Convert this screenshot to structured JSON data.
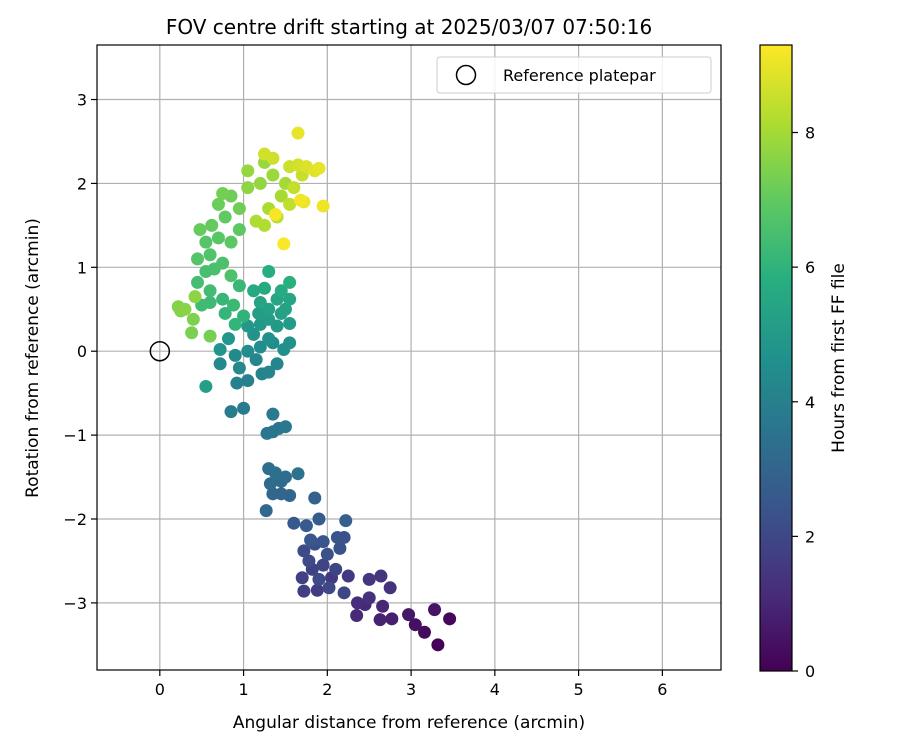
{
  "chart_data": {
    "type": "scatter",
    "title": "FOV centre drift starting at 2025/03/07 07:50:16",
    "xlabel": "Angular distance from reference (arcmin)",
    "ylabel": "Rotation from reference (arcmin)",
    "xlim": [
      -0.75,
      6.7
    ],
    "ylim": [
      -3.8,
      3.65
    ],
    "xticks": [
      "0",
      "1",
      "2",
      "3",
      "4",
      "5",
      "6"
    ],
    "yticks": [
      "−3",
      "−2",
      "−1",
      "0",
      "1",
      "2",
      "3"
    ],
    "grid": true,
    "legend": {
      "placement": "top-right",
      "entries": [
        {
          "label": "Reference platepar",
          "marker": "open-circle"
        }
      ]
    },
    "reference_point": {
      "x": 0,
      "y": 0
    },
    "colorbar": {
      "label": "Hours from first FF file",
      "colormap": "viridis",
      "range": [
        0,
        9.3
      ],
      "ticks": [
        "0",
        "2",
        "4",
        "6",
        "8"
      ]
    },
    "points": [
      [
        3.32,
        -3.5,
        0.05
      ],
      [
        3.46,
        -3.19,
        0.15
      ],
      [
        3.16,
        -3.35,
        0.3
      ],
      [
        3.05,
        -3.26,
        0.4
      ],
      [
        3.28,
        -3.08,
        0.5
      ],
      [
        2.97,
        -3.14,
        0.6
      ],
      [
        2.77,
        -3.19,
        0.8
      ],
      [
        2.63,
        -3.2,
        0.9
      ],
      [
        2.66,
        -3.04,
        1.0
      ],
      [
        2.45,
        -3.02,
        1.05
      ],
      [
        2.35,
        -3.15,
        1.1
      ],
      [
        2.36,
        -3.0,
        1.2
      ],
      [
        2.5,
        -2.94,
        1.3
      ],
      [
        2.75,
        -2.82,
        1.35
      ],
      [
        2.64,
        -2.68,
        1.4
      ],
      [
        2.5,
        -2.72,
        1.45
      ],
      [
        2.25,
        -2.68,
        1.5
      ],
      [
        2.05,
        -2.7,
        1.55
      ],
      [
        1.88,
        -2.85,
        1.6
      ],
      [
        1.72,
        -2.86,
        1.7
      ],
      [
        1.7,
        -2.7,
        1.75
      ],
      [
        1.82,
        -2.6,
        1.8
      ],
      [
        1.95,
        -2.55,
        1.85
      ],
      [
        2.1,
        -2.6,
        1.9
      ],
      [
        2.2,
        -2.88,
        1.95
      ],
      [
        2.02,
        -2.82,
        2.0
      ],
      [
        1.9,
        -2.72,
        2.05
      ],
      [
        1.78,
        -2.5,
        2.1
      ],
      [
        1.72,
        -2.38,
        2.15
      ],
      [
        1.85,
        -2.3,
        2.2
      ],
      [
        2.0,
        -2.42,
        2.25
      ],
      [
        2.15,
        -2.35,
        2.3
      ],
      [
        2.2,
        -2.22,
        2.35
      ],
      [
        2.12,
        -2.22,
        2.4
      ],
      [
        1.95,
        -2.27,
        2.45
      ],
      [
        1.8,
        -2.25,
        2.5
      ],
      [
        1.6,
        -2.05,
        2.6
      ],
      [
        1.75,
        -2.08,
        2.65
      ],
      [
        1.9,
        -2.0,
        2.7
      ],
      [
        2.22,
        -2.02,
        2.8
      ],
      [
        1.85,
        -1.75,
        2.9
      ],
      [
        1.55,
        -1.72,
        3.0
      ],
      [
        1.45,
        -1.7,
        3.05
      ],
      [
        1.35,
        -1.7,
        3.1
      ],
      [
        1.27,
        -1.9,
        3.15
      ],
      [
        1.32,
        -1.58,
        3.2
      ],
      [
        1.45,
        -1.55,
        3.25
      ],
      [
        1.5,
        -1.5,
        3.3
      ],
      [
        1.3,
        -1.4,
        3.35
      ],
      [
        1.38,
        -1.45,
        3.4
      ],
      [
        1.65,
        -1.46,
        3.45
      ],
      [
        1.35,
        -0.96,
        3.55
      ],
      [
        1.28,
        -0.98,
        3.6
      ],
      [
        1.42,
        -0.92,
        3.65
      ],
      [
        1.5,
        -0.9,
        3.7
      ],
      [
        1.35,
        -0.75,
        3.75
      ],
      [
        1.0,
        -0.68,
        3.85
      ],
      [
        0.85,
        -0.72,
        3.9
      ],
      [
        0.92,
        -0.38,
        4.0
      ],
      [
        1.05,
        -0.35,
        4.05
      ],
      [
        1.22,
        -0.27,
        4.1
      ],
      [
        1.3,
        -0.25,
        4.15
      ],
      [
        1.4,
        -0.15,
        4.2
      ],
      [
        1.15,
        -0.1,
        4.25
      ],
      [
        0.95,
        -0.2,
        4.3
      ],
      [
        0.72,
        -0.15,
        4.35
      ],
      [
        0.9,
        -0.05,
        4.4
      ],
      [
        1.05,
        0.0,
        4.45
      ],
      [
        1.2,
        0.05,
        4.5
      ],
      [
        1.35,
        0.1,
        4.55
      ],
      [
        1.48,
        0.02,
        4.6
      ],
      [
        1.55,
        0.1,
        4.65
      ],
      [
        1.3,
        0.15,
        4.7
      ],
      [
        1.12,
        0.2,
        4.75
      ],
      [
        0.72,
        0.02,
        4.8
      ],
      [
        0.82,
        0.15,
        4.85
      ],
      [
        1.05,
        0.3,
        4.9
      ],
      [
        1.2,
        0.32,
        4.95
      ],
      [
        1.4,
        0.3,
        5.0
      ],
      [
        1.55,
        0.33,
        5.05
      ],
      [
        1.3,
        0.38,
        5.1
      ],
      [
        1.18,
        0.45,
        5.15
      ],
      [
        0.55,
        -0.42,
        5.2
      ],
      [
        1.45,
        0.45,
        5.25
      ],
      [
        1.5,
        0.5,
        5.3
      ],
      [
        1.3,
        0.5,
        5.35
      ],
      [
        1.2,
        0.58,
        5.4
      ],
      [
        1.4,
        0.62,
        5.45
      ],
      [
        1.55,
        0.62,
        5.5
      ],
      [
        1.12,
        0.72,
        5.6
      ],
      [
        1.25,
        0.75,
        5.65
      ],
      [
        1.45,
        0.72,
        5.7
      ],
      [
        1.3,
        0.95,
        5.75
      ],
      [
        1.55,
        0.82,
        5.85
      ],
      [
        1.0,
        0.42,
        6.0
      ],
      [
        0.9,
        0.32,
        6.05
      ],
      [
        0.78,
        0.45,
        6.1
      ],
      [
        0.75,
        0.62,
        6.15
      ],
      [
        0.95,
        0.78,
        6.2
      ],
      [
        0.88,
        0.55,
        6.25
      ],
      [
        0.6,
        0.58,
        6.3
      ],
      [
        0.5,
        0.55,
        6.35
      ],
      [
        0.6,
        0.72,
        6.4
      ],
      [
        0.45,
        0.82,
        6.45
      ],
      [
        0.55,
        0.95,
        6.5
      ],
      [
        0.65,
        0.98,
        6.55
      ],
      [
        0.75,
        1.05,
        6.6
      ],
      [
        0.85,
        0.9,
        6.65
      ],
      [
        0.6,
        1.15,
        6.7
      ],
      [
        0.45,
        1.1,
        6.75
      ],
      [
        0.55,
        1.3,
        6.8
      ],
      [
        0.7,
        1.35,
        6.85
      ],
      [
        0.85,
        1.3,
        6.9
      ],
      [
        0.95,
        1.45,
        6.95
      ],
      [
        0.78,
        1.6,
        7.0
      ],
      [
        0.62,
        1.5,
        7.05
      ],
      [
        0.48,
        1.45,
        7.1
      ],
      [
        0.7,
        1.75,
        7.15
      ],
      [
        0.85,
        1.85,
        7.2
      ],
      [
        0.95,
        1.7,
        7.25
      ],
      [
        0.75,
        1.88,
        7.3
      ],
      [
        0.6,
        0.18,
        7.35
      ],
      [
        0.38,
        0.22,
        7.4
      ],
      [
        0.4,
        0.38,
        7.45
      ],
      [
        0.25,
        0.48,
        7.5
      ],
      [
        0.22,
        0.53,
        7.55
      ],
      [
        0.3,
        0.5,
        7.6
      ],
      [
        0.42,
        0.65,
        7.65
      ],
      [
        1.05,
        1.95,
        7.7
      ],
      [
        1.2,
        2.0,
        7.75
      ],
      [
        1.05,
        2.15,
        7.8
      ],
      [
        1.25,
        2.25,
        7.85
      ],
      [
        1.35,
        2.1,
        7.9
      ],
      [
        1.5,
        2.0,
        8.0
      ],
      [
        1.45,
        1.85,
        8.05
      ],
      [
        1.3,
        1.7,
        8.1
      ],
      [
        1.15,
        1.55,
        8.15
      ],
      [
        1.25,
        1.5,
        8.2
      ],
      [
        1.4,
        1.6,
        8.3
      ],
      [
        1.55,
        1.75,
        8.4
      ],
      [
        1.6,
        1.95,
        8.45
      ],
      [
        1.7,
        2.1,
        8.5
      ],
      [
        1.55,
        2.2,
        8.55
      ],
      [
        1.35,
        2.3,
        8.6
      ],
      [
        1.25,
        2.35,
        8.65
      ],
      [
        1.65,
        2.22,
        8.7
      ],
      [
        1.75,
        2.2,
        8.8
      ],
      [
        1.85,
        2.15,
        8.9
      ],
      [
        1.9,
        2.18,
        8.95
      ],
      [
        1.65,
        2.6,
        9.0
      ],
      [
        1.72,
        1.78,
        9.05
      ],
      [
        1.95,
        1.73,
        9.1
      ],
      [
        1.68,
        1.8,
        9.15
      ],
      [
        1.38,
        1.63,
        9.2
      ],
      [
        1.48,
        1.28,
        9.25
      ]
    ]
  }
}
